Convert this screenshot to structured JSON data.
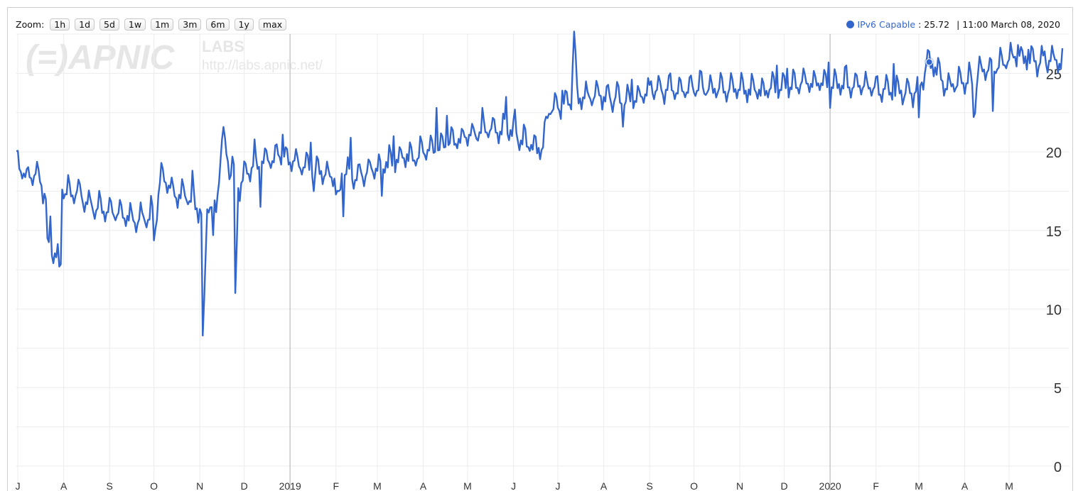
{
  "zoom": {
    "label": "Zoom:",
    "buttons": [
      "1h",
      "1d",
      "5d",
      "1w",
      "1m",
      "3m",
      "6m",
      "1y",
      "max"
    ]
  },
  "legend": {
    "series_name": "IPv6 Capable",
    "value": ": 25.72",
    "timestamp": "| 11:00 March 08, 2020",
    "color": "#3366cc"
  },
  "watermark": {
    "logo": "(=)APNIC",
    "labs": "LABS",
    "url": "http://labs.apnic.net/"
  },
  "chart_data": {
    "type": "line",
    "x_tick_labels": [
      "J",
      "A",
      "S",
      "O",
      "N",
      "D",
      "2019",
      "F",
      "M",
      "A",
      "M",
      "J",
      "J",
      "A",
      "S",
      "O",
      "N",
      "D",
      "2020",
      "F",
      "M",
      "A",
      "M"
    ],
    "x_range": [
      "2018-06-30",
      "2020-06-06"
    ],
    "y_ticks": [
      0,
      5,
      10,
      15,
      20,
      25
    ],
    "ylim": [
      -0.5,
      27.5
    ],
    "grid": true,
    "series": [
      {
        "name": "IPv6 Capable",
        "color": "#3366cc",
        "anchors": [
          [
            "2018-06-30",
            19.3
          ],
          [
            "2018-07-08",
            18.2
          ],
          [
            "2018-07-14",
            18.5
          ],
          [
            "2018-07-20",
            17.0
          ],
          [
            "2018-07-21",
            13.3
          ],
          [
            "2018-07-24",
            13.6
          ],
          [
            "2018-07-30",
            12.8
          ],
          [
            "2018-07-31",
            17.4
          ],
          [
            "2018-08-10",
            17.3
          ],
          [
            "2018-08-20",
            16.4
          ],
          [
            "2018-08-31",
            16.2
          ],
          [
            "2018-09-10",
            15.8
          ],
          [
            "2018-09-20",
            15.5
          ],
          [
            "2018-09-30",
            16.0
          ],
          [
            "2018-10-01",
            14.3
          ],
          [
            "2018-10-05",
            18.2
          ],
          [
            "2018-10-15",
            17.3
          ],
          [
            "2018-10-25",
            17.0
          ],
          [
            "2018-10-31",
            16.3
          ],
          [
            "2018-11-02",
            16.0
          ],
          [
            "2018-11-03",
            7.1
          ],
          [
            "2018-11-06",
            16.5
          ],
          [
            "2018-11-12",
            16.3
          ],
          [
            "2018-11-16",
            20.8
          ],
          [
            "2018-11-24",
            18.0
          ],
          [
            "2018-11-25",
            10.5
          ],
          [
            "2018-11-27",
            17.5
          ],
          [
            "2018-12-05",
            18.8
          ],
          [
            "2018-12-15",
            19.3
          ],
          [
            "2018-12-25",
            19.6
          ],
          [
            "2019-01-10",
            19.0
          ],
          [
            "2019-01-20",
            18.8
          ],
          [
            "2019-01-31",
            18.1
          ],
          [
            "2019-02-02",
            16.3
          ],
          [
            "2019-02-05",
            18.5
          ],
          [
            "2019-02-15",
            18.4
          ],
          [
            "2019-02-28",
            18.8
          ],
          [
            "2019-03-15",
            19.5
          ],
          [
            "2019-03-31",
            19.8
          ],
          [
            "2019-04-15",
            20.2
          ],
          [
            "2019-04-30",
            20.8
          ],
          [
            "2019-05-15",
            21.3
          ],
          [
            "2019-05-31",
            21.2
          ],
          [
            "2019-06-10",
            20.5
          ],
          [
            "2019-06-20",
            20.0
          ],
          [
            "2019-06-25",
            22.4
          ],
          [
            "2019-07-05",
            23.0
          ],
          [
            "2019-07-10",
            23.2
          ],
          [
            "2019-07-12",
            27.5
          ],
          [
            "2019-07-14",
            23.3
          ],
          [
            "2019-07-31",
            23.4
          ],
          [
            "2019-08-15",
            23.2
          ],
          [
            "2019-08-31",
            23.6
          ],
          [
            "2019-09-15",
            23.9
          ],
          [
            "2019-09-30",
            24.0
          ],
          [
            "2019-10-15",
            23.9
          ],
          [
            "2019-10-31",
            23.8
          ],
          [
            "2019-11-15",
            23.8
          ],
          [
            "2019-11-30",
            24.0
          ],
          [
            "2019-12-15",
            24.3
          ],
          [
            "2019-12-31",
            24.3
          ],
          [
            "2020-01-15",
            24.2
          ],
          [
            "2020-01-31",
            23.9
          ],
          [
            "2020-02-15",
            23.7
          ],
          [
            "2020-02-29",
            23.6
          ],
          [
            "2020-03-08",
            25.72
          ],
          [
            "2020-03-20",
            24.0
          ],
          [
            "2020-03-31",
            24.5
          ],
          [
            "2020-04-06",
            24.3
          ],
          [
            "2020-04-07",
            22.2
          ],
          [
            "2020-04-10",
            24.8
          ],
          [
            "2020-04-20",
            25.3
          ],
          [
            "2020-04-30",
            25.8
          ],
          [
            "2020-05-10",
            25.9
          ],
          [
            "2020-05-20",
            25.6
          ],
          [
            "2020-05-31",
            25.7
          ],
          [
            "2020-06-06",
            25.4
          ]
        ],
        "weekly_dip": 1.6,
        "spikes": [
          [
            "2018-07-07",
            18.9
          ],
          [
            "2018-07-23",
            15.9
          ],
          [
            "2018-10-06",
            19.3
          ],
          [
            "2018-10-27",
            18.8
          ],
          [
            "2018-11-16",
            20.8
          ],
          [
            "2018-11-23",
            19.7
          ],
          [
            "2018-12-08",
            20.8
          ],
          [
            "2018-12-27",
            21.1
          ],
          [
            "2019-01-15",
            20.6
          ],
          [
            "2019-02-04",
            17.6
          ],
          [
            "2019-02-11",
            20.9
          ],
          [
            "2019-03-12",
            21.0
          ],
          [
            "2019-04-10",
            22.8
          ],
          [
            "2019-04-17",
            22.3
          ],
          [
            "2019-05-11",
            22.8
          ],
          [
            "2019-05-27",
            23.5
          ],
          [
            "2019-06-02",
            22.7
          ],
          [
            "2019-06-26",
            22.4
          ],
          [
            "2019-07-04",
            23.9
          ],
          [
            "2019-08-20",
            24.6
          ],
          [
            "2019-09-02",
            24.5
          ],
          [
            "2019-09-15",
            25.0
          ],
          [
            "2019-10-06",
            25.1
          ],
          [
            "2019-10-20",
            24.7
          ],
          [
            "2019-11-26",
            25.5
          ],
          [
            "2019-12-03",
            25.3
          ],
          [
            "2019-12-31",
            25.7
          ],
          [
            "2020-01-12",
            25.5
          ],
          [
            "2020-02-13",
            25.6
          ],
          [
            "2020-03-06",
            25.6
          ],
          [
            "2020-04-04",
            25.7
          ],
          [
            "2020-05-07",
            26.8
          ],
          [
            "2020-05-14",
            26.5
          ],
          [
            "2020-05-25",
            26.4
          ]
        ],
        "dips": [
          [
            "2018-07-29",
            12.7
          ],
          [
            "2018-11-10",
            14.7
          ],
          [
            "2018-12-12",
            16.5
          ],
          [
            "2019-01-17",
            17.5
          ],
          [
            "2019-02-06",
            15.9
          ],
          [
            "2019-03-04",
            17.2
          ],
          [
            "2019-08-14",
            21.6
          ],
          [
            "2020-01-01",
            22.8
          ],
          [
            "2020-03-01",
            22.2
          ],
          [
            "2020-04-20",
            22.6
          ]
        ]
      }
    ]
  }
}
